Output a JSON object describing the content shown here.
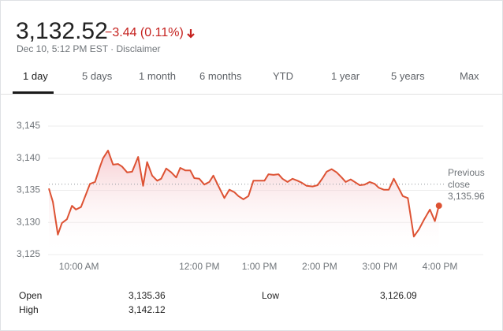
{
  "header": {
    "price": "3,132.52",
    "change": "−3.44 (0.11%)",
    "timestamp": "Dec 10, 5:12 PM EST",
    "disclaimer": "Disclaimer"
  },
  "tabs": [
    "1 day",
    "5 days",
    "1 month",
    "6 months",
    "YTD",
    "1 year",
    "5 years",
    "Max"
  ],
  "chart_data": {
    "type": "line",
    "color": "#dd5233",
    "x": [
      570,
      574,
      579,
      583,
      588,
      593,
      597,
      602,
      607,
      611,
      616,
      621,
      624,
      629,
      634,
      639,
      643,
      648,
      653,
      659,
      664,
      668,
      673,
      678,
      682,
      687,
      692,
      697,
      701,
      706,
      711,
      715,
      720,
      725,
      730,
      734,
      739,
      745,
      750,
      755,
      759,
      764,
      769,
      774,
      780,
      785,
      789,
      794,
      799,
      803,
      808,
      813,
      818,
      822,
      827,
      833,
      838,
      843,
      847,
      852,
      857,
      862,
      866,
      871,
      876,
      880,
      885,
      890,
      895,
      899,
      904,
      909,
      914,
      918,
      923,
      928,
      934,
      939,
      944,
      950,
      955,
      959
    ],
    "values": [
      3135.3,
      3133.2,
      3128.1,
      3129.9,
      3130.5,
      3132.6,
      3132.0,
      3132.4,
      3134.4,
      3136.0,
      3136.3,
      3138.7,
      3140.0,
      3141.2,
      3139.0,
      3139.1,
      3138.7,
      3137.8,
      3137.9,
      3140.2,
      3135.7,
      3139.4,
      3137.3,
      3136.5,
      3136.8,
      3138.4,
      3137.8,
      3137.0,
      3138.5,
      3138.1,
      3138.1,
      3136.9,
      3136.8,
      3135.9,
      3136.3,
      3137.3,
      3135.7,
      3133.8,
      3135.1,
      3134.7,
      3134.1,
      3133.6,
      3134.1,
      3136.5,
      3136.5,
      3136.5,
      3137.5,
      3137.4,
      3137.5,
      3136.8,
      3136.3,
      3136.8,
      3136.5,
      3136.2,
      3135.7,
      3135.6,
      3135.8,
      3136.9,
      3137.9,
      3138.3,
      3137.8,
      3137.0,
      3136.3,
      3136.7,
      3136.2,
      3135.8,
      3135.9,
      3136.3,
      3136.0,
      3135.4,
      3135.1,
      3135.1,
      3136.8,
      3135.6,
      3134.1,
      3133.8,
      3127.8,
      3128.9,
      3130.4,
      3132.0,
      3130.2,
      3132.6
    ],
    "xlim": [
      570,
      960
    ],
    "xticks": [
      {
        "value": 600,
        "label": "10:00 AM"
      },
      {
        "value": 720,
        "label": "12:00 PM"
      },
      {
        "value": 780,
        "label": "1:00 PM"
      },
      {
        "value": 840,
        "label": "2:00 PM"
      },
      {
        "value": 900,
        "label": "3:00 PM"
      },
      {
        "value": 960,
        "label": "4:00 PM"
      }
    ],
    "ylim": [
      3125,
      3145
    ],
    "yticks": [
      {
        "value": 3125,
        "label": "3,125"
      },
      {
        "value": 3130,
        "label": "3,130"
      },
      {
        "value": 3135,
        "label": "3,135"
      },
      {
        "value": 3140,
        "label": "3,140"
      },
      {
        "value": 3145,
        "label": "3,145"
      }
    ],
    "grid": true,
    "previous_close": {
      "value": 3135.96,
      "label": "3,135.96",
      "title": "Previous close"
    }
  },
  "stats": [
    [
      "Open",
      "3,135.36"
    ],
    [
      "High",
      "3,142.12"
    ],
    [
      "Low",
      "3,126.09"
    ]
  ]
}
